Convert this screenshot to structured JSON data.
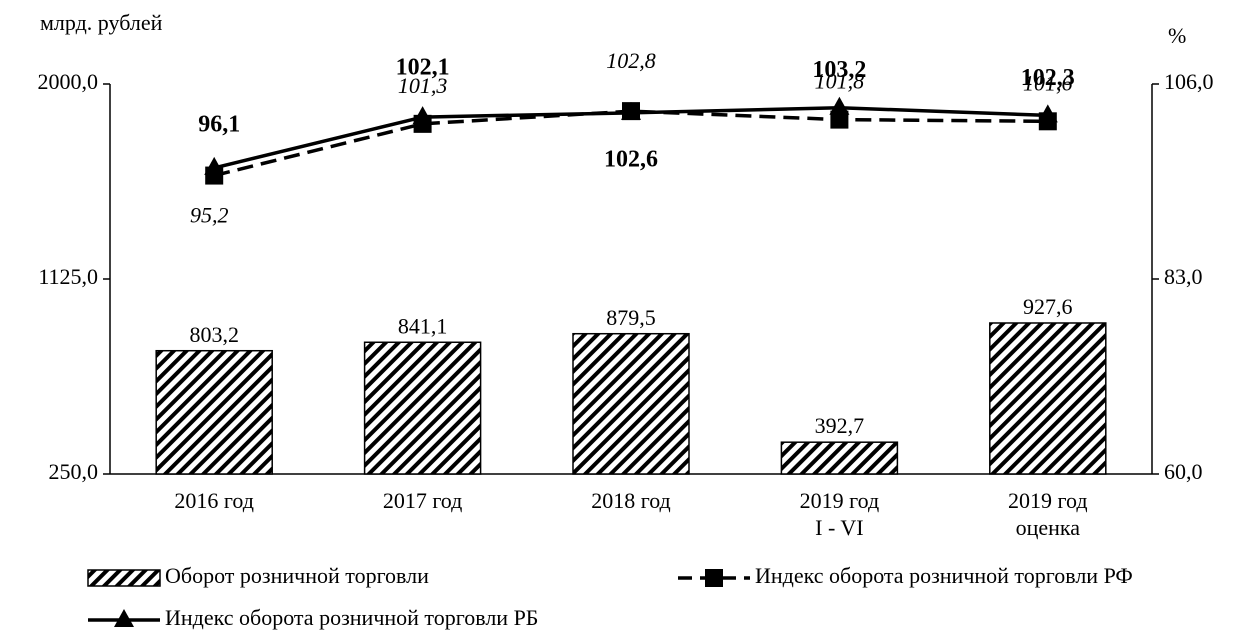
{
  "chart_data": {
    "type": "bar_line",
    "y_label": "млрд. рублей",
    "y2_label": "%",
    "categories": [
      [
        "2016 год"
      ],
      [
        "2017 год"
      ],
      [
        "2018 год"
      ],
      [
        "2019 год",
        "I - VI"
      ],
      [
        "2019 год",
        "оценка"
      ]
    ],
    "ylim": [
      250,
      2000
    ],
    "yticks": [
      {
        "value": 250,
        "label": "250,0"
      },
      {
        "value": 1125,
        "label": "1125,0"
      },
      {
        "value": 2000,
        "label": "2000,0"
      }
    ],
    "y2lim": [
      60,
      106
    ],
    "y2ticks": [
      {
        "value": 60,
        "label": "60,0"
      },
      {
        "value": 83,
        "label": "83,0"
      },
      {
        "value": 106,
        "label": "106,0"
      }
    ],
    "series": [
      {
        "name": "Оборот розничной торговли",
        "kind": "bar",
        "color": "#000000",
        "values": [
          803.2,
          841.1,
          879.5,
          392.7,
          927.6
        ],
        "value_labels": [
          "803,2",
          "841,1",
          "879,5",
          "392,7",
          "927,6"
        ]
      },
      {
        "name": "Индекс оборота розничной торговли РФ",
        "kind": "line",
        "axis": "y2",
        "color": "#000000",
        "dash": true,
        "marker": "square",
        "values": [
          95.2,
          101.3,
          102.8,
          101.8,
          101.6
        ],
        "value_labels": [
          "95,2",
          "101,3",
          "102,8",
          "101,8",
          "101,6"
        ]
      },
      {
        "name": "Индекс оборота розничной торговли РБ",
        "kind": "line",
        "axis": "y2",
        "color": "#000000",
        "dash": false,
        "marker": "triangle",
        "values": [
          96.1,
          102.1,
          102.6,
          103.2,
          102.3
        ],
        "value_labels": [
          "96,1",
          "102,1",
          "102,6",
          "103,2",
          "102,3"
        ]
      }
    ]
  }
}
